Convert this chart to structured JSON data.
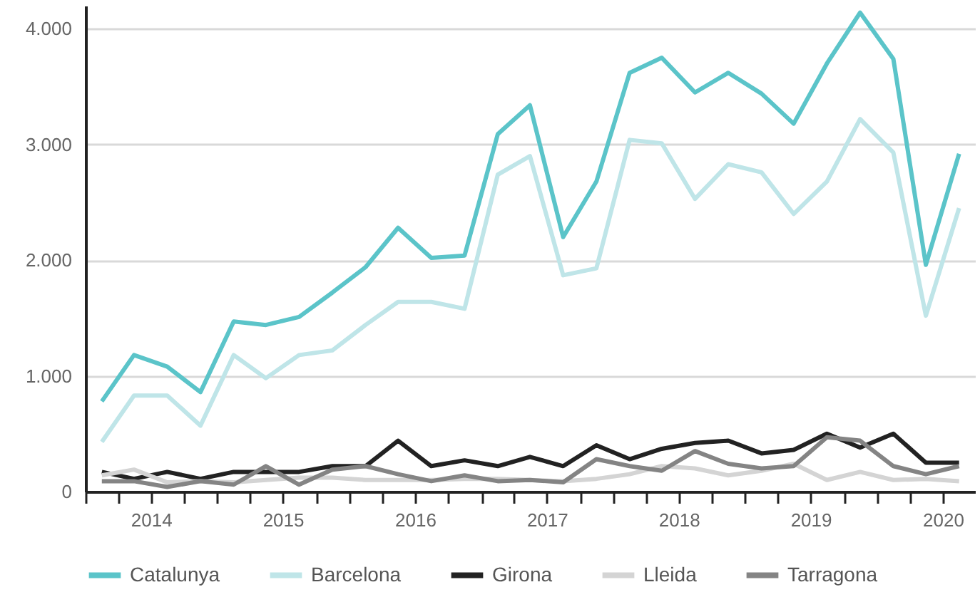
{
  "chart_data": {
    "type": "line",
    "x": [
      "2014-02-15",
      "2014-05-15",
      "2014-08-15",
      "2014-11-15",
      "2015-02-15",
      "2015-05-15",
      "2015-08-15",
      "2015-11-15",
      "2016-02-15",
      "2016-05-15",
      "2016-08-15",
      "2016-11-15",
      "2017-02-15",
      "2017-05-15",
      "2017-08-15",
      "2017-11-15",
      "2018-02-15",
      "2018-05-15",
      "2018-08-15",
      "2018-11-15",
      "2019-02-15",
      "2019-05-15",
      "2019-08-15",
      "2019-11-15",
      "2020-02-15",
      "2020-05-15",
      "2020-08-15"
    ],
    "series": [
      {
        "name": "Catalunya",
        "color": "#5bc4c9",
        "values": [
          780,
          1180,
          1080,
          860,
          1470,
          1440,
          1510,
          1720,
          1940,
          2280,
          2020,
          2040,
          3090,
          3340,
          2200,
          2680,
          3620,
          3750,
          3450,
          3620,
          3440,
          3180,
          3700,
          4140,
          3740,
          1960,
          2920
        ]
      },
      {
        "name": "Barcelona",
        "color": "#bfe5e8",
        "values": [
          430,
          830,
          830,
          570,
          1180,
          980,
          1180,
          1220,
          1440,
          1640,
          1640,
          1580,
          2740,
          2900,
          1870,
          1930,
          3040,
          3010,
          2530,
          2830,
          2760,
          2400,
          2680,
          3220,
          2930,
          1520,
          2450
        ]
      },
      {
        "name": "Girona",
        "color": "#222222",
        "values": [
          170,
          110,
          170,
          110,
          170,
          170,
          170,
          220,
          220,
          440,
          220,
          270,
          220,
          300,
          220,
          400,
          280,
          370,
          420,
          440,
          330,
          360,
          500,
          380,
          500,
          250,
          250
        ]
      },
      {
        "name": "Lleida",
        "color": "#d4d4d4",
        "values": [
          140,
          190,
          80,
          90,
          80,
          100,
          120,
          120,
          100,
          100,
          100,
          110,
          110,
          100,
          90,
          110,
          150,
          220,
          200,
          140,
          180,
          240,
          100,
          170,
          100,
          110,
          90
        ]
      },
      {
        "name": "Tarragona",
        "color": "#848484",
        "values": [
          90,
          90,
          40,
          90,
          60,
          220,
          60,
          190,
          220,
          150,
          90,
          140,
          90,
          100,
          80,
          280,
          220,
          180,
          350,
          240,
          200,
          220,
          470,
          440,
          220,
          150,
          220
        ]
      }
    ],
    "xlim": [
      "2014-01-01",
      "2020-09-30"
    ],
    "xticks": [
      {
        "value": "2014-01-01",
        "label": null
      },
      {
        "value": "2014-04-01",
        "label": null
      },
      {
        "value": "2014-07-01",
        "label": "2014"
      },
      {
        "value": "2014-10-01",
        "label": null
      },
      {
        "value": "2015-01-01",
        "label": null
      },
      {
        "value": "2015-04-01",
        "label": null
      },
      {
        "value": "2015-07-01",
        "label": "2015"
      },
      {
        "value": "2015-10-01",
        "label": null
      },
      {
        "value": "2016-01-01",
        "label": null
      },
      {
        "value": "2016-04-01",
        "label": null
      },
      {
        "value": "2016-07-01",
        "label": "2016"
      },
      {
        "value": "2016-10-01",
        "label": null
      },
      {
        "value": "2017-01-01",
        "label": null
      },
      {
        "value": "2017-04-01",
        "label": null
      },
      {
        "value": "2017-07-01",
        "label": "2017"
      },
      {
        "value": "2017-10-01",
        "label": null
      },
      {
        "value": "2018-01-01",
        "label": null
      },
      {
        "value": "2018-04-01",
        "label": null
      },
      {
        "value": "2018-07-01",
        "label": "2018"
      },
      {
        "value": "2018-10-01",
        "label": null
      },
      {
        "value": "2019-01-01",
        "label": null
      },
      {
        "value": "2019-04-01",
        "label": null
      },
      {
        "value": "2019-07-01",
        "label": "2019"
      },
      {
        "value": "2019-10-01",
        "label": null
      },
      {
        "value": "2020-01-01",
        "label": null
      },
      {
        "value": "2020-04-01",
        "label": null
      },
      {
        "value": "2020-07-01",
        "label": "2020"
      }
    ],
    "ylim": [
      0,
      4200
    ],
    "yticks": [
      0,
      {
        "value": 1000,
        "label": "1.000"
      },
      {
        "value": 2000,
        "label": "2.000"
      },
      {
        "value": 3000,
        "label": "3.000"
      },
      {
        "value": 4000,
        "label": "4.000"
      }
    ],
    "grid": "y",
    "legend": "bottom",
    "line_style": "solid",
    "marker": "none"
  }
}
